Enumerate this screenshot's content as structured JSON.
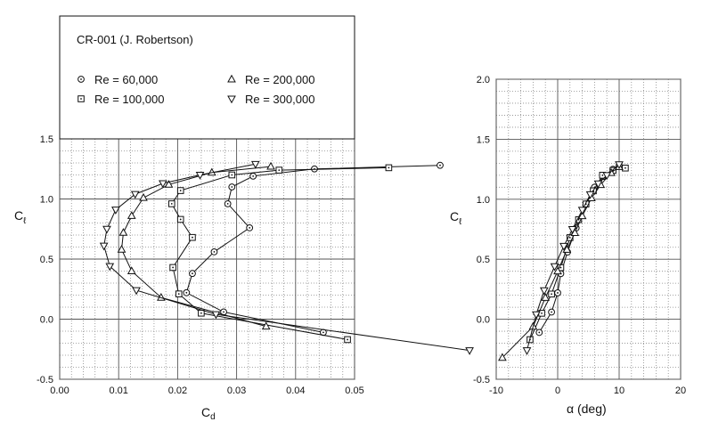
{
  "chart_data": [
    {
      "type": "line",
      "title": "",
      "legend_title": "CR-001  (J. Robertson)",
      "xlabel": "C",
      "xlabel_sub": "d",
      "ylabel": "C",
      "ylabel_sub": "ℓ",
      "xlim": [
        0.0,
        0.05
      ],
      "ylim": [
        -0.5,
        1.5
      ],
      "x_ticks": [
        "0.00",
        "0.01",
        "0.02",
        "0.03",
        "0.04",
        "0.05"
      ],
      "y_ticks": [
        "-0.5",
        "0.0",
        "0.5",
        "1.0",
        "1.5"
      ],
      "grid": true,
      "legend_position": "top-left",
      "series": [
        {
          "name": "Re = 60,000",
          "marker": "circle-dot",
          "points": [
            [
              0.0447,
              -0.11
            ],
            [
              0.0278,
              0.06
            ],
            [
              0.0215,
              0.22
            ],
            [
              0.0225,
              0.38
            ],
            [
              0.0262,
              0.56
            ],
            [
              0.0322,
              0.76
            ],
            [
              0.0285,
              0.96
            ],
            [
              0.0292,
              1.1
            ],
            [
              0.0328,
              1.19
            ],
            [
              0.0432,
              1.25
            ],
            [
              0.0645,
              1.28
            ]
          ]
        },
        {
          "name": "Re = 100,000",
          "marker": "square-dot",
          "points": [
            [
              0.0488,
              -0.17
            ],
            [
              0.024,
              0.05
            ],
            [
              0.0202,
              0.21
            ],
            [
              0.0192,
              0.43
            ],
            [
              0.0225,
              0.68
            ],
            [
              0.0205,
              0.83
            ],
            [
              0.019,
              0.96
            ],
            [
              0.0205,
              1.07
            ],
            [
              0.0292,
              1.2
            ],
            [
              0.0372,
              1.24
            ],
            [
              0.0558,
              1.26
            ]
          ]
        },
        {
          "name": "Re = 200,000",
          "marker": "triangle-up",
          "points": [
            [
              0.035,
              -0.06
            ],
            [
              0.0172,
              0.18
            ],
            [
              0.0122,
              0.4
            ],
            [
              0.0105,
              0.58
            ],
            [
              0.0108,
              0.72
            ],
            [
              0.0122,
              0.86
            ],
            [
              0.0142,
              1.01
            ],
            [
              0.0185,
              1.12
            ],
            [
              0.0258,
              1.22
            ],
            [
              0.0358,
              1.27
            ]
          ]
        },
        {
          "name": "Re = 300,000",
          "marker": "triangle-down",
          "points": [
            [
              0.0695,
              -0.26
            ],
            [
              0.0265,
              0.04
            ],
            [
              0.013,
              0.24
            ],
            [
              0.0085,
              0.44
            ],
            [
              0.0075,
              0.61
            ],
            [
              0.008,
              0.75
            ],
            [
              0.0095,
              0.91
            ],
            [
              0.0128,
              1.04
            ],
            [
              0.0175,
              1.13
            ],
            [
              0.0238,
              1.2
            ],
            [
              0.0332,
              1.29
            ]
          ]
        }
      ]
    },
    {
      "type": "line",
      "title": "",
      "xlabel": "α (deg)",
      "ylabel": "C",
      "ylabel_sub": "ℓ",
      "xlim": [
        -10,
        20
      ],
      "ylim": [
        -0.5,
        2.0
      ],
      "x_ticks": [
        "-10",
        "0",
        "10",
        "20"
      ],
      "y_ticks": [
        "-0.5",
        "0.0",
        "0.5",
        "1.0",
        "1.5",
        "2.0"
      ],
      "grid": true,
      "series": [
        {
          "name": "Re = 60,000",
          "marker": "circle-dot",
          "points": [
            [
              -3.0,
              -0.11
            ],
            [
              -1.0,
              0.06
            ],
            [
              0.0,
              0.22
            ],
            [
              0.5,
              0.38
            ],
            [
              1.6,
              0.56
            ],
            [
              3.0,
              0.76
            ],
            [
              4.6,
              0.96
            ],
            [
              6.0,
              1.1
            ],
            [
              7.5,
              1.19
            ],
            [
              9.0,
              1.25
            ],
            [
              10.0,
              1.28
            ]
          ]
        },
        {
          "name": "Re = 100,000",
          "marker": "square-dot",
          "points": [
            [
              -4.5,
              -0.17
            ],
            [
              -2.6,
              0.05
            ],
            [
              -1.0,
              0.21
            ],
            [
              0.5,
              0.43
            ],
            [
              2.0,
              0.68
            ],
            [
              3.4,
              0.83
            ],
            [
              4.6,
              0.96
            ],
            [
              5.8,
              1.07
            ],
            [
              7.3,
              1.2
            ],
            [
              9.0,
              1.24
            ],
            [
              11.0,
              1.26
            ]
          ]
        },
        {
          "name": "Re = 200,000",
          "marker": "triangle-up",
          "points": [
            [
              -9.0,
              -0.32
            ],
            [
              -4.0,
              -0.06
            ],
            [
              -2.0,
              0.18
            ],
            [
              0.0,
              0.4
            ],
            [
              1.5,
              0.58
            ],
            [
              2.8,
              0.72
            ],
            [
              4.0,
              0.86
            ],
            [
              5.5,
              1.01
            ],
            [
              7.0,
              1.12
            ],
            [
              8.7,
              1.22
            ],
            [
              10.0,
              1.27
            ]
          ]
        },
        {
          "name": "Re = 300,000",
          "marker": "triangle-down",
          "points": [
            [
              -5.0,
              -0.26
            ],
            [
              -3.5,
              0.04
            ],
            [
              -2.2,
              0.24
            ],
            [
              -0.5,
              0.44
            ],
            [
              1.0,
              0.61
            ],
            [
              2.4,
              0.75
            ],
            [
              4.0,
              0.91
            ],
            [
              5.3,
              1.04
            ],
            [
              6.6,
              1.13
            ],
            [
              8.0,
              1.2
            ],
            [
              10.0,
              1.29
            ]
          ]
        }
      ]
    }
  ],
  "colors": {
    "line": "#111111",
    "grid_major": "#555555",
    "grid_minor": "#8a8a8a"
  }
}
